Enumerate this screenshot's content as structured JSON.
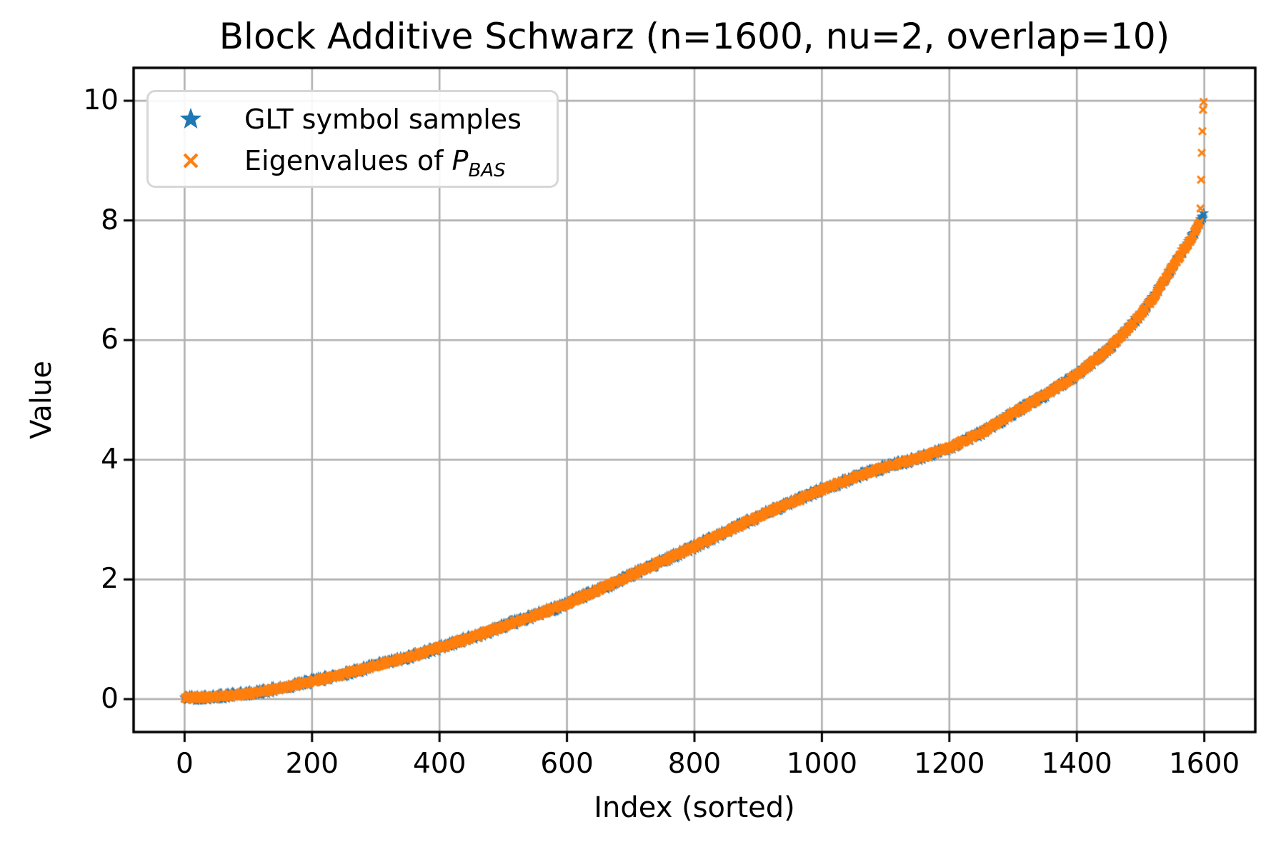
{
  "figure": {
    "title": "Block Additive Schwarz (n=1600, nu=2, overlap=10)",
    "xlabel": "Index (sorted)",
    "ylabel": "Value"
  },
  "legend": {
    "position": "upper left",
    "items": [
      {
        "label": "GLT symbol samples",
        "marker": "star",
        "color": "#1f77b4"
      },
      {
        "label_prefix": "Eigenvalues of ",
        "label_math": "P",
        "label_sub": "BAS",
        "marker": "x",
        "color": "#ff7f0e"
      }
    ]
  },
  "chart_data": {
    "type": "scatter",
    "title": "Block Additive Schwarz (n=1600, nu=2, overlap=10)",
    "xlabel": "Index (sorted)",
    "ylabel": "Value",
    "xlim": [
      -80,
      1680
    ],
    "ylim": [
      -0.55,
      10.55
    ],
    "x_ticks": [
      0,
      200,
      400,
      600,
      800,
      1000,
      1200,
      1400,
      1600
    ],
    "y_ticks": [
      0,
      2,
      4,
      6,
      8,
      10
    ],
    "grid": true,
    "grid_color": "#b0b0b0",
    "spine_color": "#000000",
    "background": "#ffffff",
    "legend_position": "upper left",
    "n_points": 1600,
    "curve_control_points": [
      [
        0,
        0.02
      ],
      [
        50,
        0.04
      ],
      [
        100,
        0.09
      ],
      [
        150,
        0.18
      ],
      [
        200,
        0.3
      ],
      [
        250,
        0.42
      ],
      [
        300,
        0.56
      ],
      [
        350,
        0.7
      ],
      [
        400,
        0.86
      ],
      [
        450,
        1.03
      ],
      [
        500,
        1.22
      ],
      [
        550,
        1.4
      ],
      [
        600,
        1.6
      ],
      [
        650,
        1.83
      ],
      [
        700,
        2.07
      ],
      [
        750,
        2.31
      ],
      [
        800,
        2.55
      ],
      [
        850,
        2.8
      ],
      [
        900,
        3.05
      ],
      [
        950,
        3.28
      ],
      [
        1000,
        3.5
      ],
      [
        1050,
        3.7
      ],
      [
        1100,
        3.88
      ],
      [
        1150,
        4.02
      ],
      [
        1200,
        4.2
      ],
      [
        1250,
        4.45
      ],
      [
        1300,
        4.78
      ],
      [
        1350,
        5.08
      ],
      [
        1400,
        5.42
      ],
      [
        1450,
        5.85
      ],
      [
        1500,
        6.42
      ],
      [
        1520,
        6.7
      ],
      [
        1540,
        7.05
      ],
      [
        1560,
        7.38
      ],
      [
        1570,
        7.55
      ],
      [
        1580,
        7.7
      ],
      [
        1590,
        7.9
      ],
      [
        1595,
        8.0
      ],
      [
        1599,
        8.08
      ]
    ],
    "series": [
      {
        "name": "GLT symbol samples",
        "marker": "star",
        "color": "#1f77b4",
        "marker_size": 8,
        "value_jitter": 0.055
      },
      {
        "name": "Eigenvalues of P_BAS",
        "marker": "x",
        "color": "#ff7f0e",
        "marker_size": 5,
        "value_jitter": 0.035,
        "top_outliers": [
          8.2,
          8.68,
          9.13,
          9.49,
          9.85,
          9.98
        ]
      }
    ]
  }
}
